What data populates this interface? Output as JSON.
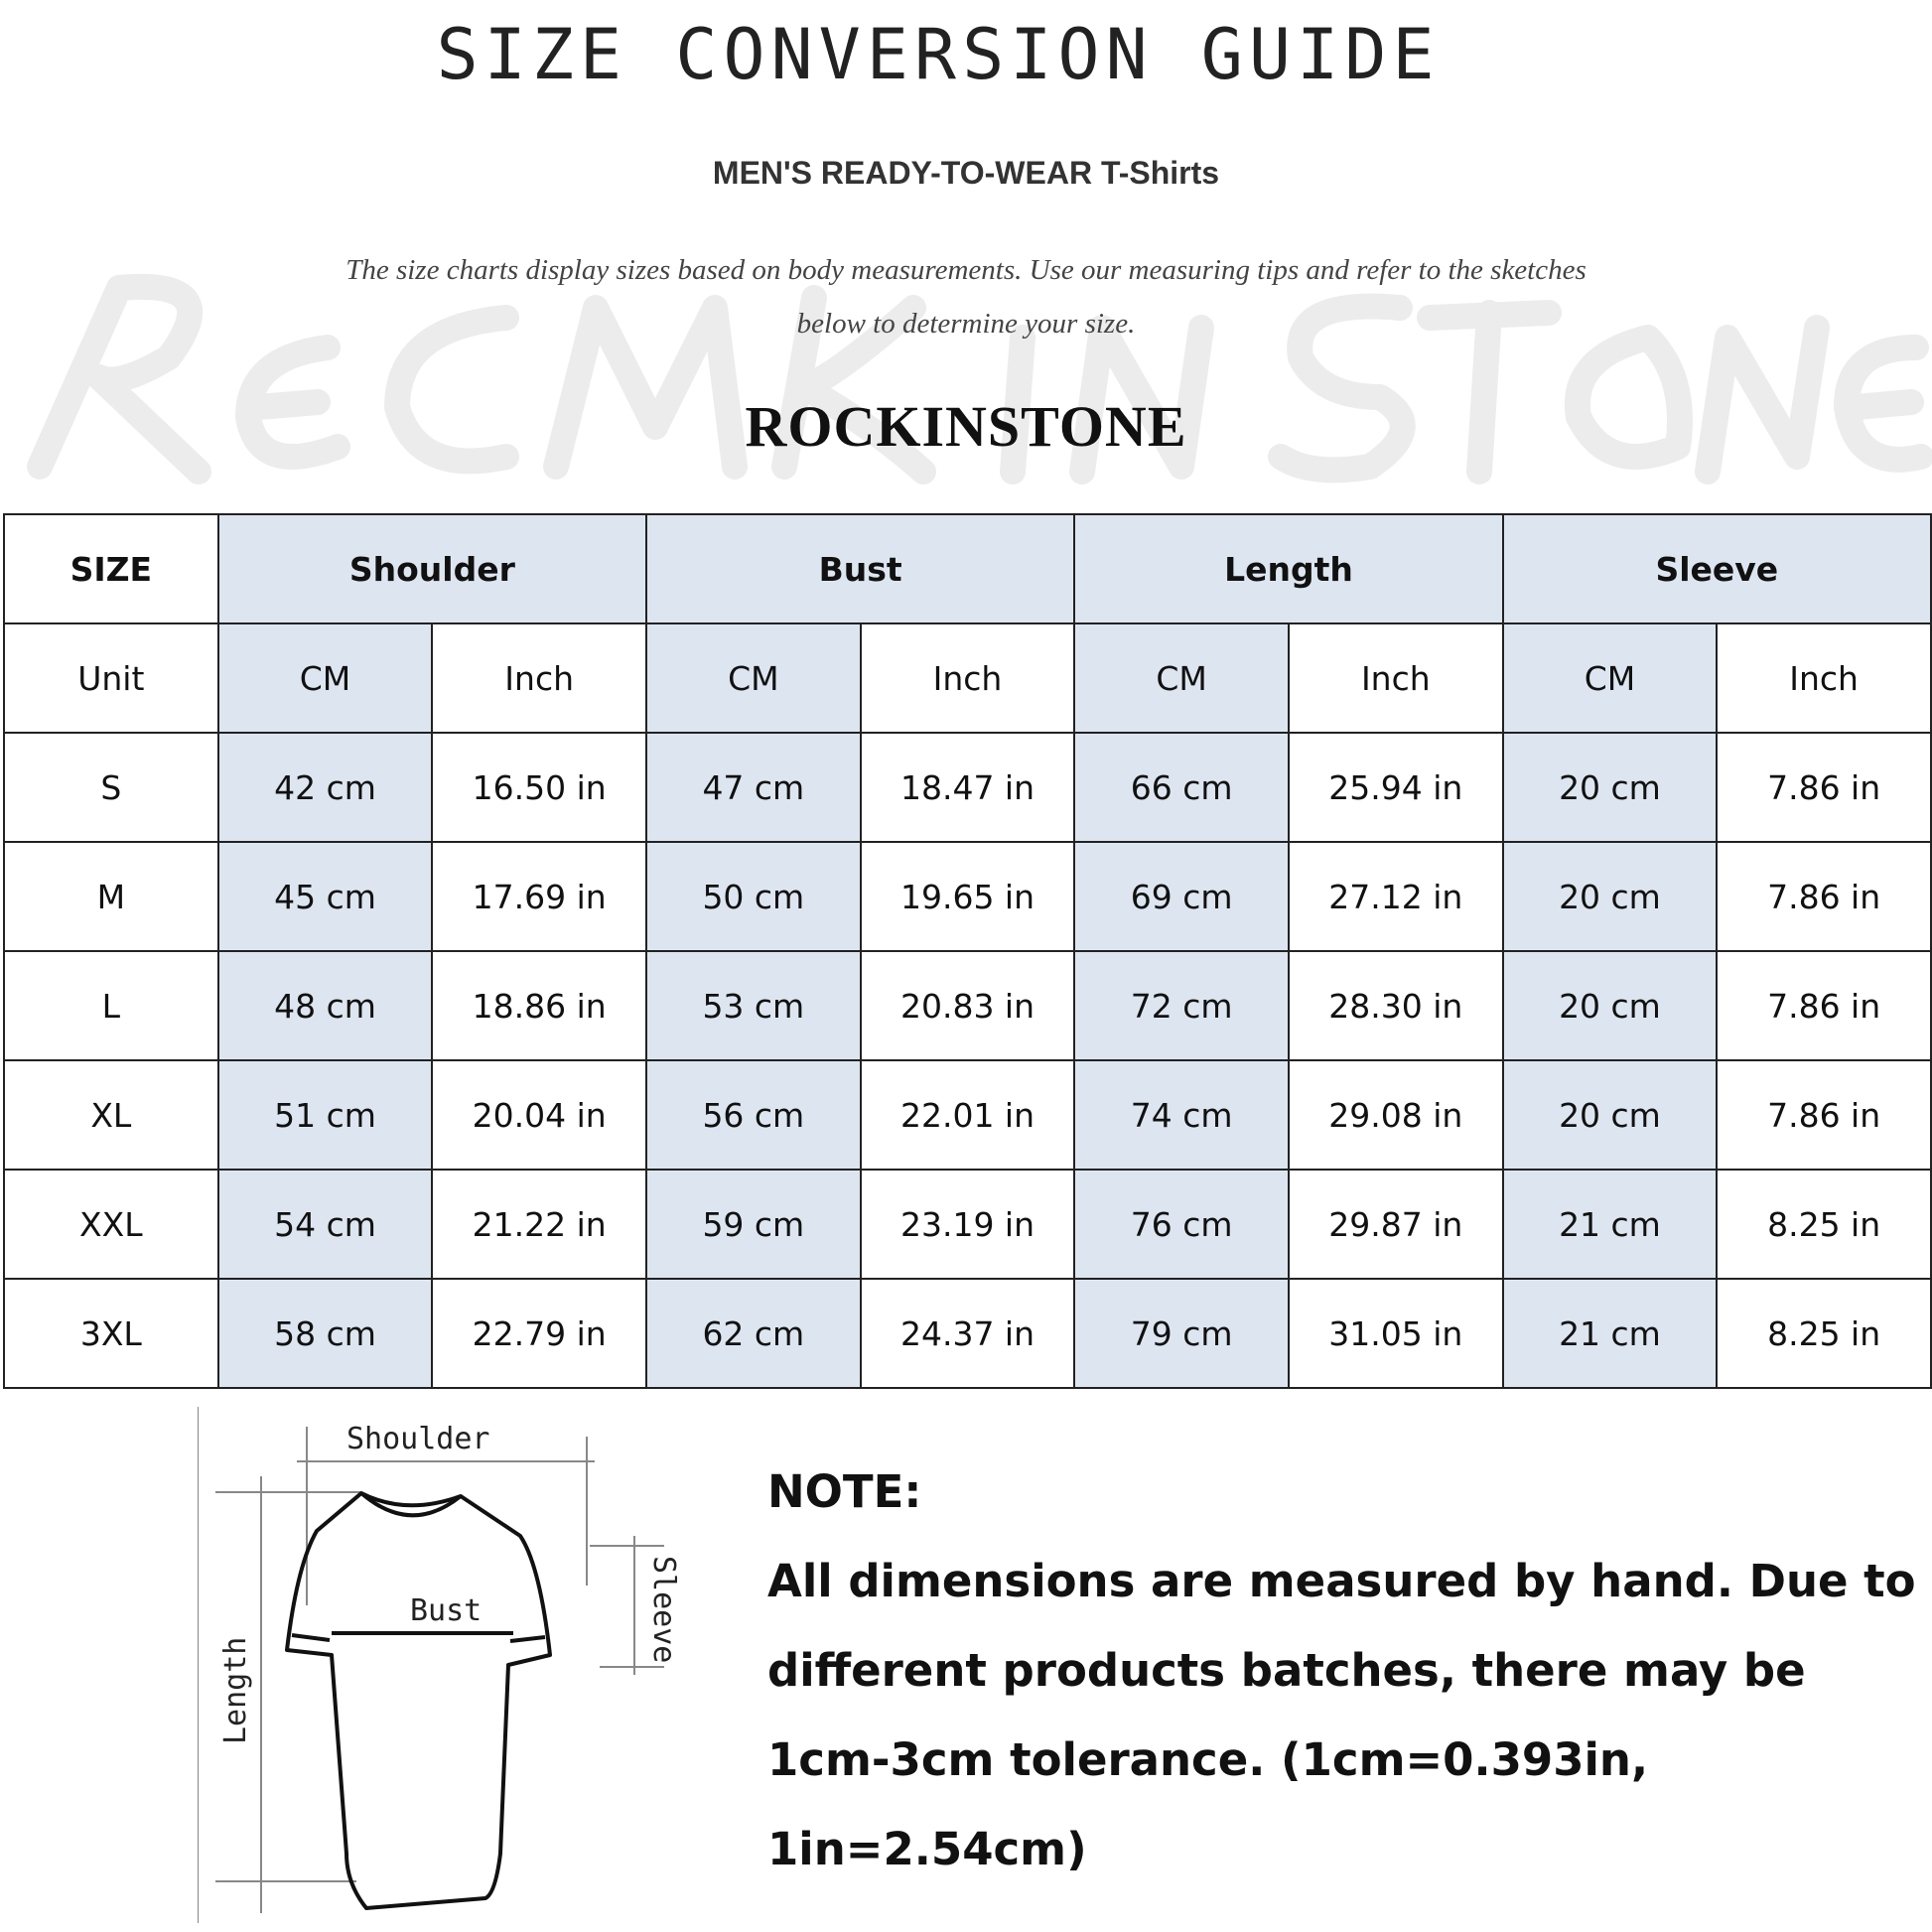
{
  "title": "SIZE CONVERSION GUIDE",
  "subtitle": "MEN'S READY-TO-WEAR T-Shirts",
  "description": [
    "The size charts display sizes based on body measurements. Use our measuring tips and refer to the sketches",
    "below to determine your size."
  ],
  "watermark": "ROCK IN STONE",
  "brand": "ROCKINSTONE",
  "table": {
    "size_header": "SIZE",
    "groups": [
      "Shoulder",
      "Bust",
      "Length",
      "Sleeve"
    ],
    "unit_label": "Unit",
    "units": [
      "CM",
      "Inch"
    ],
    "rows": [
      {
        "size": "S",
        "values": [
          "42 cm",
          "16.50 in",
          "47 cm",
          "18.47 in",
          "66 cm",
          "25.94 in",
          "20 cm",
          "7.86 in"
        ]
      },
      {
        "size": "M",
        "values": [
          "45 cm",
          "17.69 in",
          "50 cm",
          "19.65 in",
          "69 cm",
          "27.12 in",
          "20 cm",
          "7.86 in"
        ]
      },
      {
        "size": "L",
        "values": [
          "48 cm",
          "18.86 in",
          "53 cm",
          "20.83 in",
          "72 cm",
          "28.30 in",
          "20 cm",
          "7.86 in"
        ]
      },
      {
        "size": "XL",
        "values": [
          "51 cm",
          "20.04 in",
          "56 cm",
          "22.01 in",
          "74 cm",
          "29.08 in",
          "20 cm",
          "7.86 in"
        ]
      },
      {
        "size": "XXL",
        "values": [
          "54 cm",
          "21.22 in",
          "59 cm",
          "23.19 in",
          "76 cm",
          "29.87 in",
          "21 cm",
          "8.25 in"
        ]
      },
      {
        "size": "3XL",
        "values": [
          "58 cm",
          "22.79 in",
          "62 cm",
          "24.37 in",
          "79 cm",
          "31.05 in",
          "21 cm",
          "8.25 in"
        ]
      }
    ],
    "highlight_color": "#dde6f0"
  },
  "sketch": {
    "shoulder": "Shoulder",
    "bust": "Bust",
    "length": "Length",
    "sleeve": "Sleeve"
  },
  "note": {
    "heading": "NOTE:",
    "lines": [
      "All dimensions are measured by hand. Due to",
      "different products batches, there may be",
      "1cm-3cm tolerance. (1cm=0.393in, 1in=2.54cm)"
    ]
  }
}
